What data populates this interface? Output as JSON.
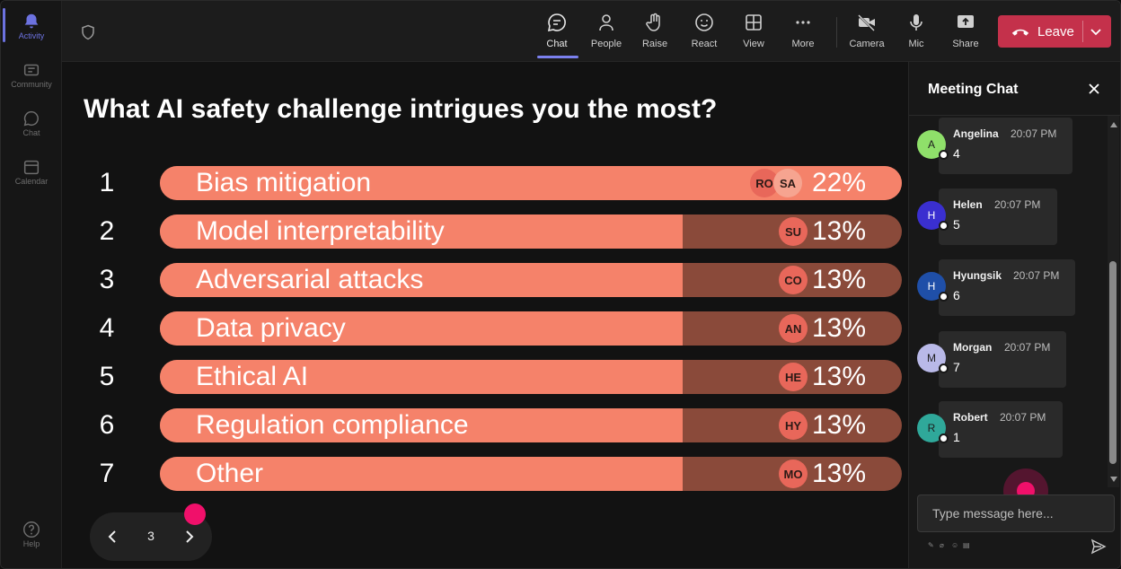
{
  "rail": {
    "items": [
      {
        "label": "Activity",
        "active": true
      },
      {
        "label": "Community"
      },
      {
        "label": "Chat"
      },
      {
        "label": "Calendar"
      }
    ],
    "help": "Help"
  },
  "topbar": {
    "buttons": [
      {
        "label": "Chat",
        "icon": "chat-icon"
      },
      {
        "label": "People",
        "icon": "people-icon"
      },
      {
        "label": "Raise",
        "icon": "hand-icon"
      },
      {
        "label": "React",
        "icon": "smiley-icon"
      },
      {
        "label": "View",
        "icon": "grid-icon"
      },
      {
        "label": "More",
        "icon": "more-icon"
      },
      {
        "label": "Camera",
        "icon": "camera-off-icon"
      },
      {
        "label": "Mic",
        "icon": "mic-icon"
      },
      {
        "label": "Share",
        "icon": "share-icon"
      }
    ],
    "leave_label": "Leave"
  },
  "poll": {
    "question": "What AI safety challenge intrigues you the most?",
    "options": [
      {
        "num": "1",
        "label": "Bias mitigation",
        "percent": 22,
        "percent_label": "22%",
        "avatars": [
          "RO",
          "SA"
        ]
      },
      {
        "num": "2",
        "label": "Model interpretability",
        "percent": 13,
        "percent_label": "13%",
        "avatars": [
          "SU"
        ]
      },
      {
        "num": "3",
        "label": "Adversarial attacks",
        "percent": 13,
        "percent_label": "13%",
        "avatars": [
          "CO"
        ]
      },
      {
        "num": "4",
        "label": "Data privacy",
        "percent": 13,
        "percent_label": "13%",
        "avatars": [
          "AN"
        ]
      },
      {
        "num": "5",
        "label": "Ethical AI",
        "percent": 13,
        "percent_label": "13%",
        "avatars": [
          "HE"
        ]
      },
      {
        "num": "6",
        "label": "Regulation compliance",
        "percent": 13,
        "percent_label": "13%",
        "avatars": [
          "HY"
        ]
      },
      {
        "num": "7",
        "label": "Other",
        "percent": 13,
        "percent_label": "13%",
        "avatars": [
          "MO"
        ]
      }
    ],
    "page": "3"
  },
  "chat": {
    "title": "Meeting Chat",
    "messages": [
      {
        "initial": "A",
        "name": "Angelina",
        "time": "20:07 PM",
        "text": "4",
        "color": "#8fe06a"
      },
      {
        "initial": "H",
        "name": "Helen",
        "time": "20:07 PM",
        "text": "5",
        "color": "#3a2fd0"
      },
      {
        "initial": "H",
        "name": "Hyungsik",
        "time": "20:07 PM",
        "text": "6",
        "color": "#1f4fa8"
      },
      {
        "initial": "M",
        "name": "Morgan",
        "time": "20:07 PM",
        "text": "7",
        "color": "#b9b9e8"
      },
      {
        "initial": "R",
        "name": "Robert",
        "time": "20:07 PM",
        "text": "1",
        "color": "#2fa89a"
      }
    ],
    "input_placeholder": "Type message here..."
  },
  "colors": {
    "bar_fill": "#f5826a",
    "bar_track": "#8a4a3a",
    "leave": "#c4314b",
    "accent": "#7b80ee",
    "cursor": "#f0106a"
  }
}
